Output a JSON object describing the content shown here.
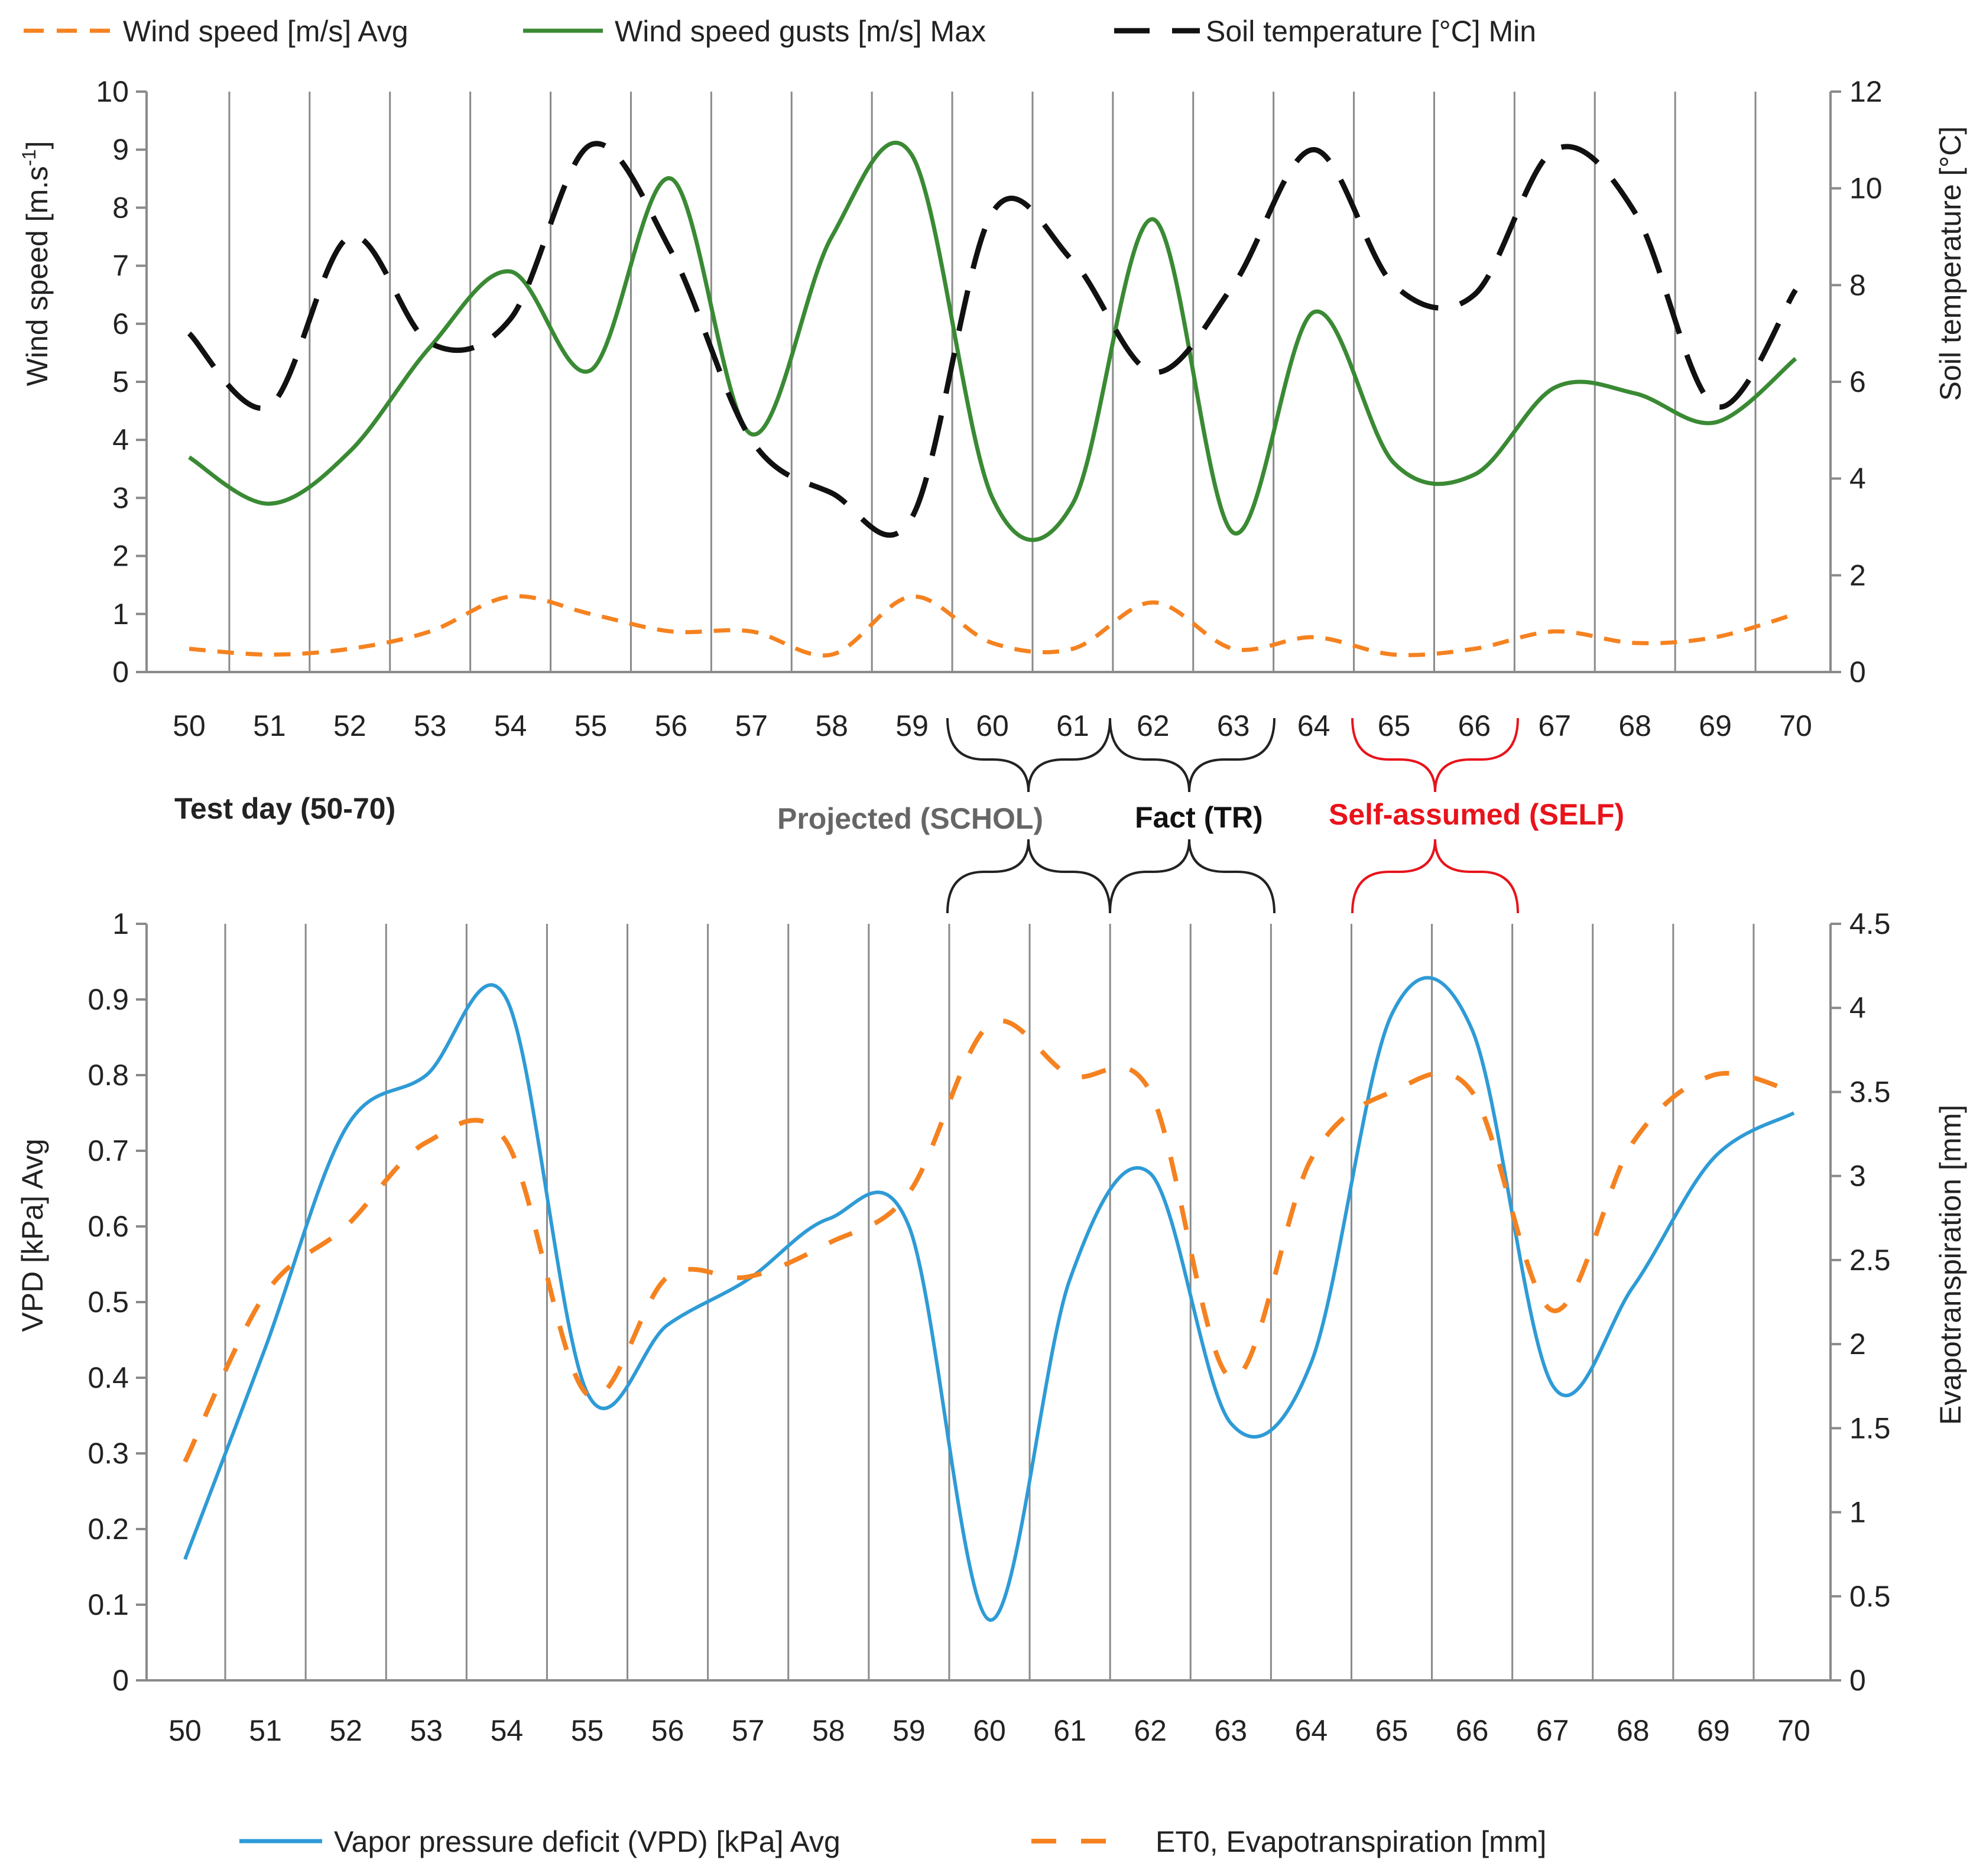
{
  "chart_data": [
    {
      "type": "line",
      "title": "",
      "x": [
        50,
        51,
        52,
        53,
        54,
        55,
        56,
        57,
        58,
        59,
        60,
        61,
        62,
        63,
        64,
        65,
        66,
        67,
        68,
        69,
        70
      ],
      "xlabel": "",
      "ylabel": "Wind speed [m.s-1]",
      "ylabel_main": "Wind speed [m.s",
      "ylabel_sup": "-1",
      "ylabel_tail": "]",
      "ylim": [
        0,
        10
      ],
      "yticks": [
        0,
        1,
        2,
        3,
        4,
        5,
        6,
        7,
        8,
        9,
        10
      ],
      "y2label": "Soil temperature [°C]",
      "y2lim": [
        0,
        12
      ],
      "y2ticks": [
        0,
        2,
        4,
        6,
        8,
        10,
        12
      ],
      "grid": "vertical",
      "legend_position": "top",
      "series": [
        {
          "name": "Wind speed [m/s] Avg",
          "axis": "left",
          "style": "dashed",
          "color": "#f58220",
          "values": [
            0.4,
            0.3,
            0.4,
            0.7,
            1.3,
            1.0,
            0.7,
            0.7,
            0.3,
            1.3,
            0.5,
            0.4,
            1.2,
            0.4,
            0.6,
            0.3,
            0.4,
            0.7,
            0.5,
            0.6,
            1.0
          ]
        },
        {
          "name": "Wind speed gusts [m/s] Max",
          "axis": "left",
          "style": "solid",
          "color": "#3a8a34",
          "values": [
            3.7,
            2.9,
            3.8,
            5.6,
            6.9,
            5.2,
            8.5,
            4.1,
            7.5,
            8.9,
            3.0,
            2.9,
            7.8,
            2.4,
            6.2,
            3.6,
            3.4,
            4.9,
            4.8,
            4.3,
            5.4
          ]
        },
        {
          "name": "Soil temperature [°C] Min",
          "axis": "right",
          "style": "dashed",
          "color": "#111111",
          "values": [
            7.0,
            5.5,
            9.0,
            6.8,
            7.3,
            10.9,
            8.7,
            4.8,
            3.7,
            3.2,
            9.5,
            8.5,
            6.2,
            8.0,
            10.8,
            8.0,
            7.8,
            10.8,
            9.5,
            5.5,
            7.9
          ]
        }
      ]
    },
    {
      "type": "line",
      "title": "",
      "x": [
        50,
        51,
        52,
        53,
        54,
        55,
        56,
        57,
        58,
        59,
        60,
        61,
        62,
        63,
        64,
        65,
        66,
        67,
        68,
        69,
        70
      ],
      "xlabel": "",
      "ylabel": "VPD [kPa] Avg",
      "ylim": [
        0,
        1
      ],
      "yticks": [
        "0",
        "0.1",
        "0.2",
        "0.3",
        "0.4",
        "0.5",
        "0.6",
        "0.7",
        "0.8",
        "0.9",
        "1"
      ],
      "y2label": "Evapotranspiration [mm]",
      "y2lim": [
        0,
        4.5
      ],
      "y2ticks": [
        "0",
        "0.5",
        "1",
        "1.5",
        "2",
        "2.5",
        "3",
        "3.5",
        "4",
        "4.5"
      ],
      "grid": "vertical",
      "legend_position": "bottom",
      "series": [
        {
          "name": "Vapor pressure deficit (VPD) [kPa] Avg",
          "axis": "left",
          "style": "solid",
          "color": "#2e9bd6",
          "values": [
            0.16,
            0.44,
            0.73,
            0.8,
            0.9,
            0.38,
            0.47,
            0.53,
            0.61,
            0.6,
            0.08,
            0.53,
            0.67,
            0.34,
            0.42,
            0.88,
            0.86,
            0.39,
            0.52,
            0.69,
            0.75
          ]
        },
        {
          "name": "ET0, Evapotranspiration [mm]",
          "axis": "right",
          "style": "dashed",
          "color": "#f58220",
          "values": [
            1.3,
            2.3,
            2.7,
            3.2,
            3.2,
            1.7,
            2.4,
            2.4,
            2.6,
            2.9,
            3.9,
            3.6,
            3.5,
            1.8,
            3.1,
            3.5,
            3.5,
            2.2,
            3.2,
            3.6,
            3.5
          ]
        }
      ]
    }
  ],
  "annotations": {
    "test_day": "Test day (50-70)",
    "projected": "Projected (SCHOL)",
    "fact": "Fact (TR)",
    "self_assumed": "Self-assumed (SELF)"
  },
  "colors": {
    "projected_text": "#666666",
    "fact_text": "#111111",
    "self_text": "#e8131b",
    "brace_black": "#222222",
    "brace_red": "#e8131b",
    "grid": "#8a8a8a"
  }
}
